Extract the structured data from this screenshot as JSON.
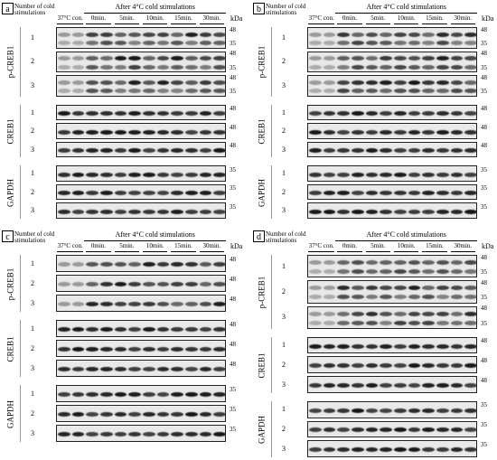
{
  "panels": [
    {
      "label": "a",
      "stim_label": "Number of cold stimulations",
      "control": "37°C con.",
      "treatment": "After 4°C cold stimulations",
      "times": [
        "0min.",
        "5min.",
        "10min.",
        "15min.",
        "30min."
      ],
      "unit": "kDa",
      "groups": [
        {
          "name": "p-CREB1",
          "rows": [
            {
              "number": "1",
              "markers": [
                "48",
                "35"
              ]
            },
            {
              "number": "2",
              "markers": [
                "48",
                "35"
              ]
            },
            {
              "number": "3",
              "markers": [
                "48",
                "35"
              ]
            }
          ]
        },
        {
          "name": "CREB1",
          "rows": [
            {
              "number": "1",
              "markers": [
                "48"
              ]
            },
            {
              "number": "2",
              "markers": [
                "48"
              ]
            },
            {
              "number": "3",
              "markers": [
                "48"
              ]
            }
          ]
        },
        {
          "name": "GAPDH",
          "rows": [
            {
              "number": "1",
              "markers": [
                "35"
              ]
            },
            {
              "number": "2",
              "markers": [
                "35"
              ]
            },
            {
              "number": "3",
              "markers": [
                "35"
              ]
            }
          ]
        }
      ]
    },
    {
      "label": "b",
      "stim_label": "Number of cold stimulations",
      "control": "37°C con.",
      "treatment": "After 4°C cold stimulations",
      "times": [
        "0min.",
        "5min.",
        "10min.",
        "15min.",
        "30min."
      ],
      "unit": "kDa",
      "groups": [
        {
          "name": "p-CREB1",
          "rows": [
            {
              "number": "1",
              "markers": [
                "48",
                "35"
              ]
            },
            {
              "number": "2",
              "markers": [
                "48",
                "35"
              ]
            },
            {
              "number": "3",
              "markers": [
                "48",
                "35"
              ]
            }
          ]
        },
        {
          "name": "CREB1",
          "rows": [
            {
              "number": "1",
              "markers": [
                "48"
              ]
            },
            {
              "number": "2",
              "markers": [
                "48"
              ]
            },
            {
              "number": "3",
              "markers": [
                "48"
              ]
            }
          ]
        },
        {
          "name": "GAPDH",
          "rows": [
            {
              "number": "1",
              "markers": [
                "35"
              ]
            },
            {
              "number": "2",
              "markers": [
                "35"
              ]
            },
            {
              "number": "3",
              "markers": [
                "35"
              ]
            }
          ]
        }
      ]
    },
    {
      "label": "c",
      "stim_label": "Number of cold stimulations",
      "control": "37°C con.",
      "treatment": "After 4°C cold stimulations",
      "times": [
        "0min.",
        "5min.",
        "10min.",
        "15min.",
        "30min."
      ],
      "unit": "kDa",
      "groups": [
        {
          "name": "p-CREB1",
          "rows": [
            {
              "number": "1",
              "markers": [
                "48"
              ]
            },
            {
              "number": "2",
              "markers": [
                "48"
              ]
            },
            {
              "number": "3",
              "markers": [
                "48"
              ]
            }
          ]
        },
        {
          "name": "CREB1",
          "rows": [
            {
              "number": "1",
              "markers": [
                "48"
              ]
            },
            {
              "number": "2",
              "markers": [
                "48"
              ]
            },
            {
              "number": "3",
              "markers": [
                "48"
              ]
            }
          ]
        },
        {
          "name": "GAPDH",
          "rows": [
            {
              "number": "1",
              "markers": [
                "35"
              ]
            },
            {
              "number": "2",
              "markers": [
                "35"
              ]
            },
            {
              "number": "3",
              "markers": [
                "35"
              ]
            }
          ]
        }
      ]
    },
    {
      "label": "d",
      "stim_label": "Number of cold stimulations",
      "control": "37°C con.",
      "treatment": "After 4°C cold stimulations",
      "times": [
        "0min.",
        "5min.",
        "10min.",
        "15min.",
        "30min."
      ],
      "unit": "kDa",
      "groups": [
        {
          "name": "p-CREB1",
          "rows": [
            {
              "number": "1",
              "markers": [
                "48",
                "35"
              ]
            },
            {
              "number": "2",
              "markers": [
                "48",
                "35"
              ]
            },
            {
              "number": "3",
              "markers": [
                "48",
                "35"
              ]
            }
          ]
        },
        {
          "name": "CREB1",
          "rows": [
            {
              "number": "1",
              "markers": [
                "48"
              ]
            },
            {
              "number": "2",
              "markers": [
                "48"
              ]
            },
            {
              "number": "3",
              "markers": [
                "48"
              ]
            }
          ]
        },
        {
          "name": "GAPDH",
          "rows": [
            {
              "number": "1",
              "markers": [
                "35"
              ]
            },
            {
              "number": "2",
              "markers": [
                "35"
              ]
            },
            {
              "number": "3",
              "markers": [
                "35"
              ]
            }
          ]
        }
      ]
    }
  ]
}
